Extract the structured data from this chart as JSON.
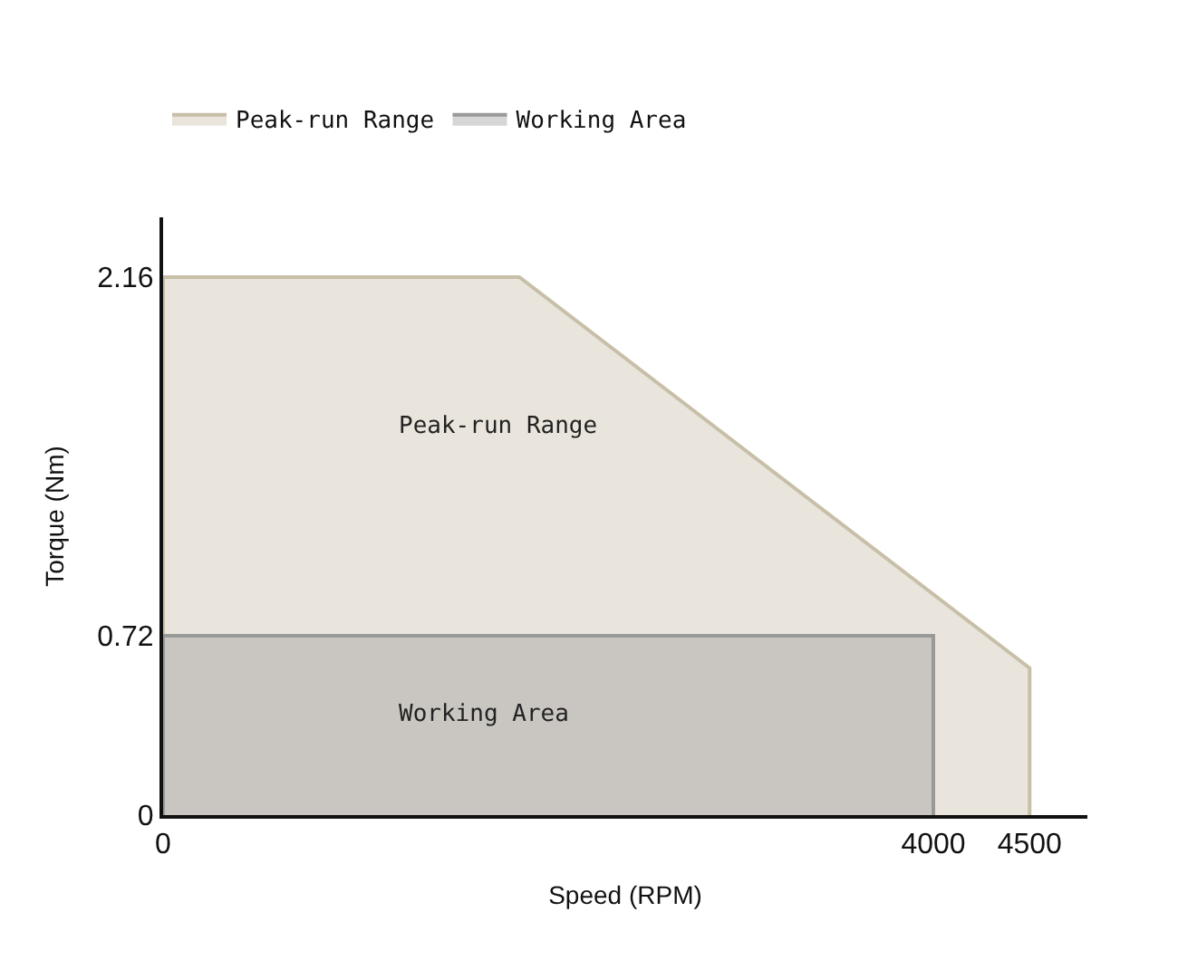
{
  "chart_data": {
    "type": "area",
    "xlabel": "Speed (RPM)",
    "ylabel": "Torque (Nm)",
    "series": [
      {
        "name": "Peak-run Range",
        "color": "#c8bfa8",
        "x": [
          0,
          0,
          1850,
          4500,
          4500
        ],
        "values": [
          0,
          2.16,
          2.16,
          0.59,
          0
        ]
      },
      {
        "name": "Working Area",
        "color": "#999999",
        "x": [
          0,
          0,
          4000,
          4000
        ],
        "values": [
          0,
          0.72,
          0.72,
          0
        ]
      }
    ],
    "annotations": [
      "Peak-run Range",
      "Working Area"
    ],
    "xlim": [
      0,
      4800
    ],
    "xticks": [
      0,
      4000,
      4500
    ],
    "ylim": [
      0,
      2.4
    ],
    "yticks": [
      0,
      0.72,
      2.16
    ],
    "legend": "top left"
  }
}
